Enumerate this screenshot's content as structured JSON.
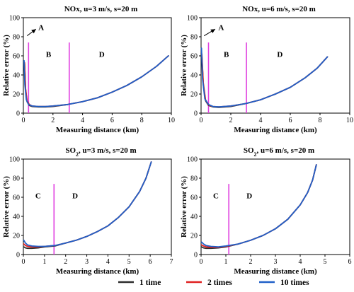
{
  "chart_data": [
    {
      "type": "line",
      "title": "NOx, u=3 m/s, s=20 m",
      "xlabel": "Measuring distance (km)",
      "ylabel": "Relative error (%)",
      "xlim": [
        0,
        10
      ],
      "ylim": [
        0,
        100
      ],
      "xticks": [
        "0",
        "2",
        "4",
        "6",
        "8",
        "10"
      ],
      "yticks": [
        "0",
        "20",
        "40",
        "60",
        "80",
        "100"
      ],
      "vlines": [
        0.35,
        3.1
      ],
      "vline_color": "#e040e0",
      "region_labels": [
        {
          "text": "A",
          "x": 1.2,
          "y": 90
        },
        {
          "text": "B",
          "x": 1.7,
          "y": 62
        },
        {
          "text": "D",
          "x": 5.3,
          "y": 62
        }
      ],
      "arrow": {
        "from": [
          0.25,
          81
        ],
        "to": [
          0.85,
          88
        ]
      },
      "series": [
        {
          "name": "1 time",
          "color": "#2d2d2d",
          "x": [
            0.08,
            0.15,
            0.25,
            0.4,
            0.6,
            1,
            1.5,
            2,
            3,
            4,
            5,
            6,
            7,
            8,
            9,
            9.8
          ],
          "y": [
            52,
            25,
            12,
            8,
            7,
            6.5,
            6.5,
            7,
            9,
            12,
            16,
            22,
            29,
            38,
            49,
            60
          ]
        },
        {
          "name": "2 times",
          "color": "#e02020",
          "x": [
            0.08,
            0.15,
            0.25,
            0.4,
            0.6,
            1,
            1.5,
            2,
            3,
            4,
            5,
            6,
            7,
            8,
            9,
            9.8
          ],
          "y": [
            53,
            26,
            13,
            9,
            7.5,
            7,
            7,
            7.5,
            9,
            12,
            16,
            22,
            29,
            38,
            49,
            60
          ]
        },
        {
          "name": "10 times",
          "color": "#2060c8",
          "x": [
            0.05,
            0.1,
            0.2,
            0.35,
            0.6,
            1,
            1.5,
            2,
            3,
            4,
            5,
            6,
            7,
            8,
            9,
            9.8
          ],
          "y": [
            55,
            30,
            14,
            9,
            7.5,
            7,
            7,
            7.5,
            9,
            12,
            16,
            22,
            29,
            38,
            49,
            60
          ]
        }
      ]
    },
    {
      "type": "line",
      "title": "NOx, u=6 m/s, s=20 m",
      "xlabel": "Measuring distance (km)",
      "ylabel": "Relative error (%)",
      "xlim": [
        0,
        10
      ],
      "ylim": [
        0,
        100
      ],
      "xticks": [
        "0",
        "2",
        "4",
        "6",
        "8",
        "10"
      ],
      "yticks": [
        "0",
        "20",
        "40",
        "60",
        "80",
        "100"
      ],
      "vlines": [
        0.5,
        3.05
      ],
      "vline_color": "#e040e0",
      "region_labels": [
        {
          "text": "A",
          "x": 1.35,
          "y": 90
        },
        {
          "text": "B",
          "x": 1.7,
          "y": 62
        },
        {
          "text": "D",
          "x": 5.3,
          "y": 62
        }
      ],
      "arrow": {
        "from": [
          0.2,
          81
        ],
        "to": [
          0.95,
          88
        ]
      },
      "series": [
        {
          "name": "1 time",
          "color": "#2d2d2d",
          "x": [
            0.05,
            0.15,
            0.3,
            0.5,
            0.8,
            1.2,
            2,
            3,
            4,
            5,
            6,
            7,
            7.8,
            8.5
          ],
          "y": [
            60,
            30,
            13,
            8,
            6.5,
            6,
            7,
            10,
            14,
            20,
            27,
            37,
            47,
            59
          ]
        },
        {
          "name": "2 times",
          "color": "#e02020",
          "x": [
            0.05,
            0.15,
            0.3,
            0.5,
            0.8,
            1.2,
            2,
            3,
            4,
            5,
            6,
            7,
            7.8,
            8.5
          ],
          "y": [
            62,
            32,
            14,
            8.5,
            7,
            6.5,
            7.5,
            10,
            14,
            20,
            27,
            37,
            47,
            59
          ]
        },
        {
          "name": "10 times",
          "color": "#2060c8",
          "x": [
            0.03,
            0.1,
            0.25,
            0.5,
            0.8,
            1.2,
            2,
            3,
            4,
            5,
            6,
            7,
            7.8,
            8.5
          ],
          "y": [
            68,
            36,
            15,
            9,
            7,
            6.5,
            7.5,
            10,
            14,
            20,
            27,
            37,
            47,
            59
          ]
        }
      ]
    },
    {
      "type": "line",
      "title": "SO2, u=3 m/s, s=20 m",
      "title_subscript": "2",
      "xlabel": "Measuring distance (km)",
      "ylabel": "Relative error (%)",
      "xlim": [
        0,
        7
      ],
      "ylim": [
        0,
        100
      ],
      "xticks": [
        "0",
        "1",
        "2",
        "3",
        "4",
        "5",
        "6",
        "7"
      ],
      "yticks": [
        "0",
        "20",
        "40",
        "60",
        "80",
        "100"
      ],
      "vlines": [
        1.45
      ],
      "vline_color": "#e040e0",
      "region_labels": [
        {
          "text": "C",
          "x": 0.7,
          "y": 62
        },
        {
          "text": "D",
          "x": 2.45,
          "y": 62
        }
      ],
      "series": [
        {
          "name": "1 time",
          "color": "#2d2d2d",
          "x": [
            0.02,
            0.1,
            0.2,
            0.4,
            0.7,
            1,
            1.5,
            2,
            2.5,
            3,
            3.5,
            4,
            4.5,
            5,
            5.5,
            5.8,
            6.05
          ],
          "y": [
            8,
            7,
            6.5,
            6.5,
            7,
            8,
            9,
            12,
            15,
            19,
            24,
            30,
            39,
            50,
            66,
            80,
            97
          ]
        },
        {
          "name": "2 times",
          "color": "#e02020",
          "x": [
            0.02,
            0.1,
            0.2,
            0.4,
            0.7,
            1,
            1.5,
            2,
            2.5,
            3,
            3.5,
            4,
            4.5,
            5,
            5.5,
            5.8,
            6.05
          ],
          "y": [
            11,
            9.5,
            8.5,
            8,
            8,
            8.5,
            9.5,
            12,
            15,
            19,
            24,
            30,
            39,
            50,
            66,
            80,
            97
          ]
        },
        {
          "name": "10 times",
          "color": "#2060c8",
          "x": [
            0.02,
            0.1,
            0.2,
            0.4,
            0.7,
            1,
            1.5,
            2,
            2.5,
            3,
            3.5,
            4,
            4.5,
            5,
            5.5,
            5.8,
            6.05
          ],
          "y": [
            15,
            12,
            10,
            9,
            8.5,
            8.5,
            9.5,
            12,
            15,
            19,
            24,
            30,
            39,
            50,
            66,
            80,
            97
          ]
        }
      ]
    },
    {
      "type": "line",
      "title": "SO2, u=6 m/s, s=20 m",
      "title_subscript": "2",
      "xlabel": "Measuring distance (km)",
      "ylabel": "Relative error (%)",
      "xlim": [
        0,
        6
      ],
      "ylim": [
        0,
        100
      ],
      "xticks": [
        "0",
        "1",
        "2",
        "3",
        "4",
        "5",
        "6"
      ],
      "yticks": [
        "0",
        "20",
        "40",
        "60",
        "80",
        "100"
      ],
      "vlines": [
        1.12
      ],
      "vline_color": "#e040e0",
      "region_labels": [
        {
          "text": "C",
          "x": 0.6,
          "y": 62
        },
        {
          "text": "D",
          "x": 1.95,
          "y": 62
        }
      ],
      "series": [
        {
          "name": "1 time",
          "color": "#2d2d2d",
          "x": [
            0.02,
            0.1,
            0.2,
            0.4,
            0.7,
            1,
            1.5,
            2,
            2.5,
            3,
            3.5,
            4,
            4.3,
            4.5,
            4.65
          ],
          "y": [
            8,
            7,
            6.5,
            6.5,
            7,
            8,
            11,
            15,
            20,
            27,
            37,
            52,
            65,
            78,
            94
          ]
        },
        {
          "name": "2 times",
          "color": "#e02020",
          "x": [
            0.02,
            0.1,
            0.2,
            0.4,
            0.7,
            1,
            1.5,
            2,
            2.5,
            3,
            3.5,
            4,
            4.3,
            4.5,
            4.65
          ],
          "y": [
            10,
            9,
            8,
            7.5,
            7.5,
            8.5,
            11,
            15,
            20,
            27,
            37,
            52,
            65,
            78,
            94
          ]
        },
        {
          "name": "10 times",
          "color": "#2060c8",
          "x": [
            0.02,
            0.1,
            0.2,
            0.4,
            0.7,
            1,
            1.5,
            2,
            2.5,
            3,
            3.5,
            4,
            4.3,
            4.5,
            4.65
          ],
          "y": [
            13,
            11,
            9.5,
            8.5,
            8,
            9,
            11,
            15,
            20,
            27,
            37,
            52,
            65,
            78,
            94
          ]
        }
      ]
    }
  ],
  "legend": {
    "items": [
      {
        "label": "1 time",
        "color": "#2d2d2d"
      },
      {
        "label": "2 times",
        "color": "#e02020"
      },
      {
        "label": "10 times",
        "color": "#2060c8"
      }
    ],
    "placement": "bottom-center"
  }
}
